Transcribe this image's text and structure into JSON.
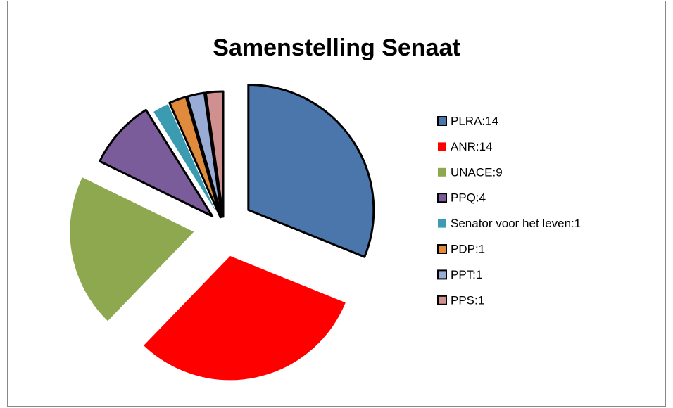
{
  "chart_data": {
    "type": "pie",
    "title": "Samenstelling Senaat",
    "categories": [
      "PLRA:14",
      "ANR:14",
      "UNACE:9",
      "PPQ:4",
      "Senator voor het leven:1",
      "PDP:1",
      "PPT:1",
      "PPS:1"
    ],
    "values": [
      14,
      14,
      9,
      4,
      1,
      1,
      1,
      1
    ],
    "colors": [
      "#4a76ab",
      "#ff0000",
      "#8ea84f",
      "#7a5c9a",
      "#3b9bb0",
      "#e08a3c",
      "#99acd6",
      "#d09090"
    ],
    "edgecolors": [
      "#000000",
      null,
      null,
      "#000000",
      null,
      "#000000",
      "#000000",
      "#000000"
    ],
    "legend": "right"
  }
}
